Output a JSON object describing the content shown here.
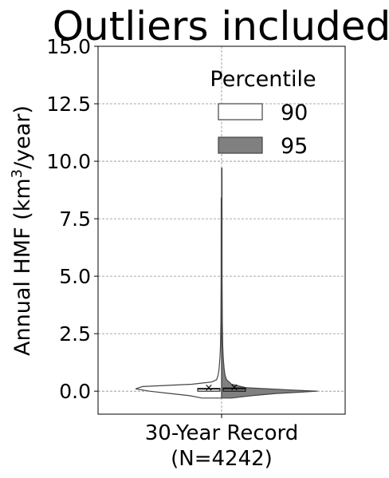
{
  "chart_data": {
    "type": "violin",
    "title": "Outliers included",
    "ylabel_main": "Annual HMF (km",
    "ylabel_sup": "3",
    "ylabel_tail": "/year)",
    "xlabel_lines": [
      "30-Year Record",
      "(N=4242)"
    ],
    "categories": [
      "30-Year Record"
    ],
    "ylim": [
      -1.0,
      15.0
    ],
    "yticks": [
      0.0,
      2.5,
      5.0,
      7.5,
      10.0,
      12.5,
      15.0
    ],
    "ytick_labels": [
      "0.0",
      "2.5",
      "5.0",
      "7.5",
      "10.0",
      "12.5",
      "15.0"
    ],
    "grid": true,
    "legend": {
      "title": "Percentile",
      "placement": "top-right",
      "entries": [
        {
          "label": "90",
          "fill": "#ffffff",
          "edge": "#444444"
        },
        {
          "label": "95",
          "fill": "#808080",
          "edge": "#444444"
        }
      ]
    },
    "series": [
      {
        "name": "90",
        "side": "left",
        "fill": "#ffffff",
        "edge": "#444444",
        "max": 8.4,
        "box": {
          "q1": 0.0,
          "median": 0.09,
          "q3": 0.12,
          "mean": 0.18
        },
        "profile": [
          [
            -0.3,
            0.2
          ],
          [
            -0.2,
            0.32
          ],
          [
            -0.1,
            0.52
          ],
          [
            0.0,
            0.73
          ],
          [
            0.1,
            0.87
          ],
          [
            0.2,
            0.8
          ],
          [
            0.3,
            0.3
          ],
          [
            0.4,
            0.1
          ],
          [
            0.5,
            0.05
          ],
          [
            0.7,
            0.035
          ],
          [
            1.0,
            0.025
          ],
          [
            1.5,
            0.016
          ],
          [
            2.0,
            0.011
          ],
          [
            3.0,
            0.007
          ],
          [
            5.0,
            0.005
          ],
          [
            8.4,
            0.004
          ]
        ]
      },
      {
        "name": "95",
        "side": "right",
        "fill": "#808080",
        "edge": "#444444",
        "max": 9.7,
        "box": {
          "q1": 0.0,
          "median": 0.1,
          "q3": 0.14,
          "mean": 0.2
        },
        "profile": [
          [
            -0.3,
            0.1
          ],
          [
            -0.2,
            0.3
          ],
          [
            -0.1,
            0.55
          ],
          [
            0.0,
            0.97
          ],
          [
            0.05,
            0.7
          ],
          [
            0.15,
            0.25
          ],
          [
            0.3,
            0.1
          ],
          [
            0.5,
            0.05
          ],
          [
            0.7,
            0.035
          ],
          [
            1.0,
            0.025
          ],
          [
            1.5,
            0.016
          ],
          [
            2.0,
            0.011
          ],
          [
            3.0,
            0.007
          ],
          [
            5.0,
            0.005
          ],
          [
            9.7,
            0.004
          ]
        ]
      }
    ]
  }
}
